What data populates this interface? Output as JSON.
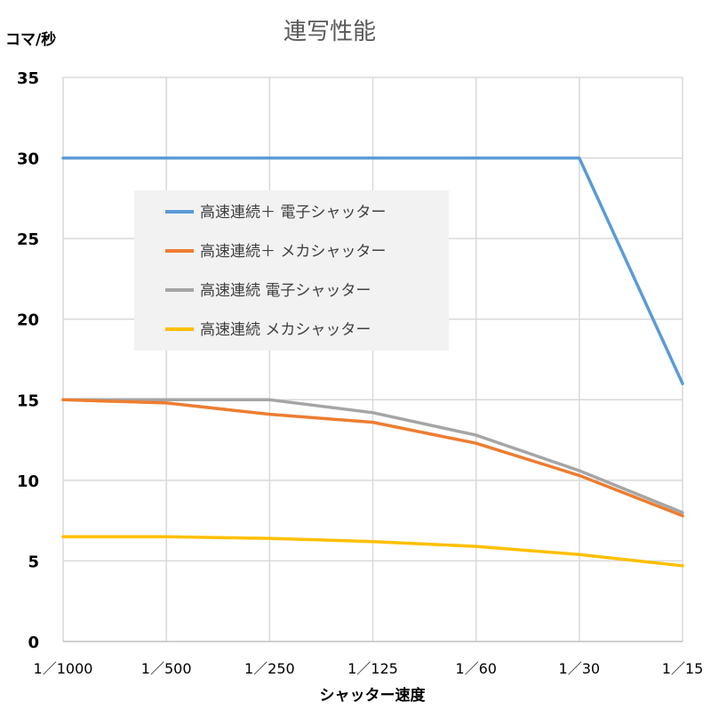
{
  "chart_data": {
    "type": "line",
    "title": "連写性能",
    "ylabel": "コマ/秒",
    "xlabel": "シャッター速度",
    "categories": [
      "1／1000",
      "1／500",
      "1／250",
      "1／125",
      "1／60",
      "1／30",
      "1／15"
    ],
    "ylim": [
      0,
      35
    ],
    "yticks": [
      0,
      5,
      10,
      15,
      20,
      25,
      30,
      35
    ],
    "grid": true,
    "legend_position": "upper-left inside",
    "series": [
      {
        "name": "高速連続＋ 電子シャッター",
        "color": "#5b9bd5",
        "values": [
          30,
          30,
          30,
          30,
          30,
          30,
          16
        ]
      },
      {
        "name": "高速連続＋ メカシャッター",
        "color": "#ed7d31",
        "values": [
          15,
          14.8,
          14.1,
          13.6,
          12.3,
          10.3,
          7.8
        ]
      },
      {
        "name": "高速連続 電子シャッター",
        "color": "#a5a5a5",
        "values": [
          15,
          15,
          15,
          14.2,
          12.8,
          10.6,
          8
        ]
      },
      {
        "name": "高速連続 メカシャッター",
        "color": "#ffc000",
        "values": [
          6.5,
          6.5,
          6.4,
          6.2,
          5.9,
          5.4,
          4.7
        ]
      }
    ]
  }
}
